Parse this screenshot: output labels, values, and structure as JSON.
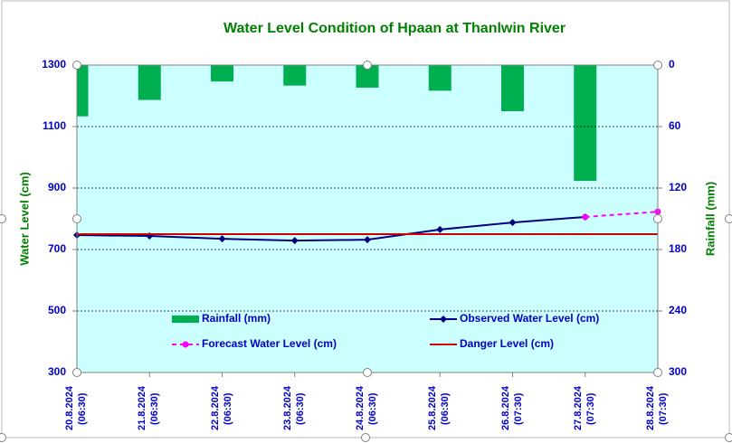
{
  "chart_data": {
    "type": "combo",
    "title": "Water Level Condition of Hpaan at Thanlwin River",
    "ylabel": "Water Level (cm)",
    "y2label": "Rainfall (mm)",
    "categories": [
      "20.8.2024\n(06:30)",
      "21.8.2024\n(06:30)",
      "22.8.2024\n(06:30)",
      "23.8.2024\n(06:30)",
      "24.8.2024\n(06:30)",
      "25.8.2024\n(06:30)",
      "26.8.2024\n(07:30)",
      "27.8.2024\n(07:30)",
      "28.8.2024\n(07:30)"
    ],
    "series": [
      {
        "name": "Rainfall (mm)",
        "type": "bar",
        "axis": "y2",
        "color": "#00b050",
        "values": [
          50,
          34,
          16,
          20,
          22,
          25,
          45,
          113,
          null
        ]
      },
      {
        "name": "Observed Water Level (cm)",
        "type": "line",
        "color": "#000080",
        "marker": "diamond",
        "values": [
          747,
          744,
          735,
          729,
          732,
          765,
          788,
          806,
          null
        ]
      },
      {
        "name": "Forecast Water Level (cm)",
        "type": "line",
        "color": "#ff00ff",
        "marker": "circle",
        "dashed": true,
        "values": [
          null,
          null,
          null,
          null,
          null,
          null,
          null,
          806,
          823
        ]
      },
      {
        "name": "Danger Level (cm)",
        "type": "line",
        "color": "#cc0000",
        "values": [
          750,
          750,
          750,
          750,
          750,
          750,
          750,
          750,
          750
        ]
      }
    ],
    "ylim": [
      300,
      1300
    ],
    "yticks": [
      300,
      500,
      700,
      900,
      1100,
      1300
    ],
    "y2lim": [
      0,
      300
    ],
    "y2ticks": [
      0,
      60,
      120,
      180,
      240,
      300
    ],
    "y2_reversed": true,
    "grid": true,
    "plot_background": "#ccffff"
  }
}
